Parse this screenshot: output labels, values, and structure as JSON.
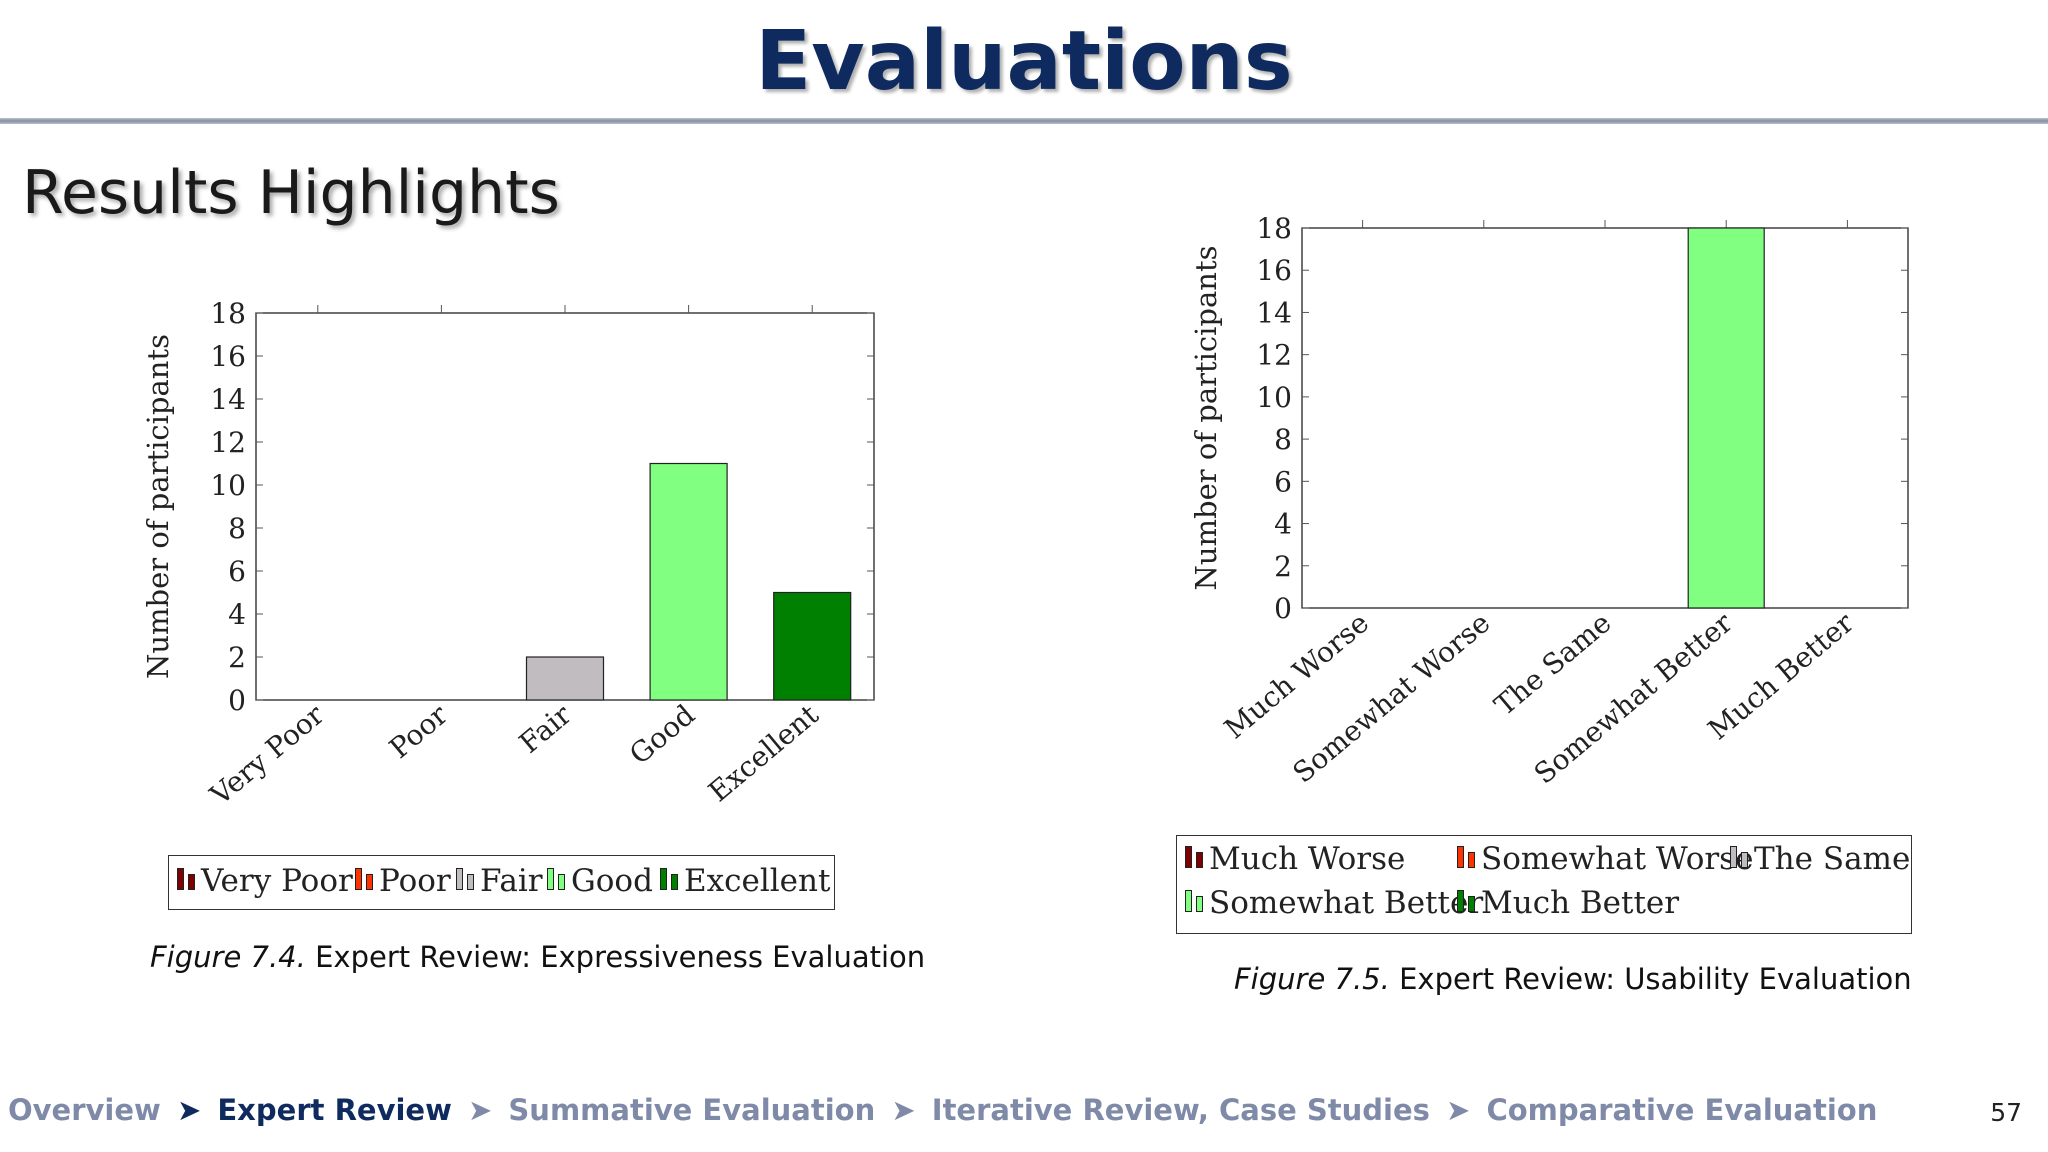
{
  "slide": {
    "title": "Evaluations",
    "section_heading": "Results Highlights",
    "page_number": "57"
  },
  "colors": {
    "title": "#0e2a5e",
    "nav_inactive": "#7e8aa8",
    "nav_active": "#0e2a5e",
    "very_poor": "#7f0000",
    "poor": "#ff3300",
    "fair": "#c0bcc0",
    "good": "#80ff80",
    "excellent": "#008000"
  },
  "navigation": {
    "items": [
      {
        "label": "Overview",
        "active": false
      },
      {
        "label": "Expert Review",
        "active": true
      },
      {
        "label": "Summative Evaluation",
        "active": false
      },
      {
        "label": "Iterative Review, Case Studies",
        "active": false
      },
      {
        "label": "Comparative Evaluation",
        "active": false
      }
    ],
    "separator": "➤"
  },
  "captions": {
    "left_fig": "Figure 7.4.",
    "left_text": "Expert Review: Expressiveness Evaluation",
    "right_fig": "Figure 7.5.",
    "right_text": "Expert Review: Usability Evaluation"
  },
  "chart_data": [
    {
      "type": "bar",
      "title": "",
      "xlabel": "",
      "ylabel": "Number of participants",
      "ylim": [
        0,
        18
      ],
      "yticks": [
        0,
        2,
        4,
        6,
        8,
        10,
        12,
        14,
        16,
        18
      ],
      "categories": [
        "Very Poor",
        "Poor",
        "Fair",
        "Good",
        "Excellent"
      ],
      "values": [
        0,
        0,
        2,
        11,
        5
      ],
      "bar_colors": [
        "#7f0000",
        "#ff3300",
        "#c0bcc0",
        "#80ff80",
        "#008000"
      ],
      "legend": [
        "Very Poor",
        "Poor",
        "Fair",
        "Good",
        "Excellent"
      ],
      "legend_position": "bottom",
      "grid": false
    },
    {
      "type": "bar",
      "title": "",
      "xlabel": "",
      "ylabel": "Number of participants",
      "ylim": [
        0,
        18
      ],
      "yticks": [
        0,
        2,
        4,
        6,
        8,
        10,
        12,
        14,
        16,
        18
      ],
      "categories": [
        "Much Worse",
        "Somewhat Worse",
        "The Same",
        "Somewhat Better",
        "Much Better"
      ],
      "values": [
        0,
        0,
        0,
        18,
        0
      ],
      "bar_colors": [
        "#7f0000",
        "#ff3300",
        "#c0bcc0",
        "#80ff80",
        "#008000"
      ],
      "legend": [
        "Much Worse",
        "Somewhat Worse",
        "The Same",
        "Somewhat Better",
        "Much Better"
      ],
      "legend_position": "bottom",
      "grid": false
    }
  ]
}
